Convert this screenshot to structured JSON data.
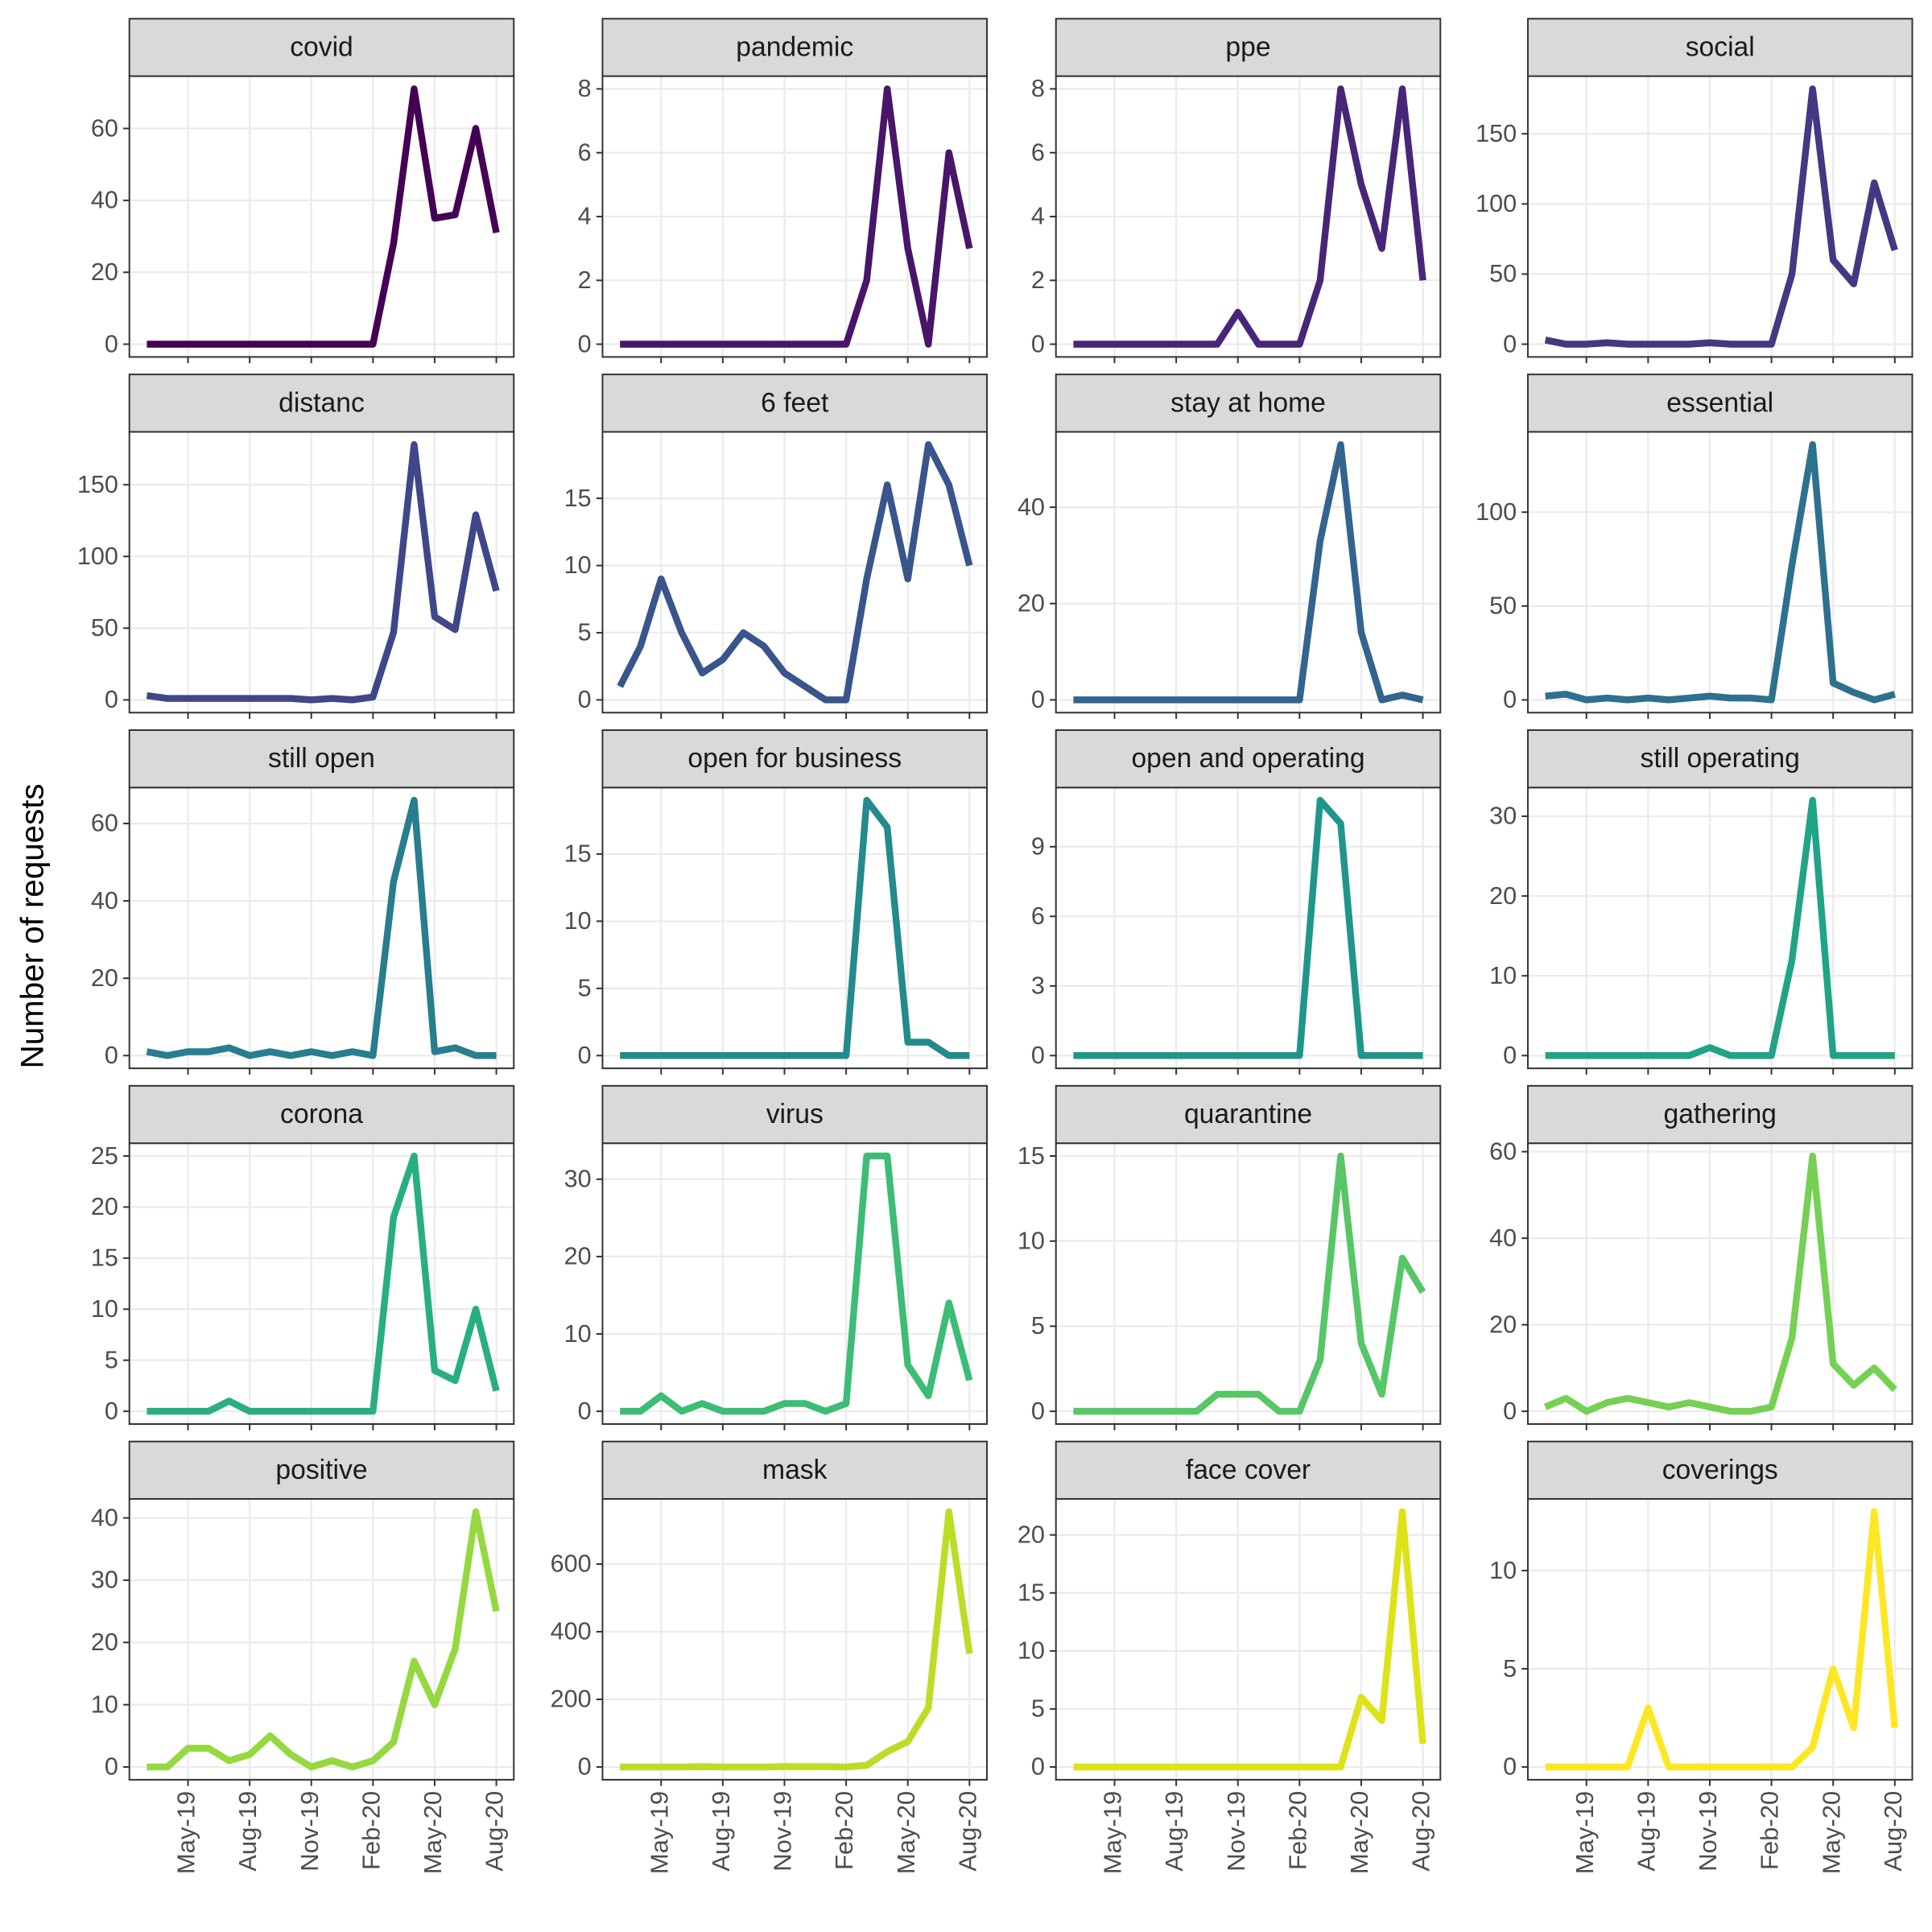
{
  "chart_data": {
    "type": "line",
    "ylabel": "Number of requests",
    "x": [
      "Mar-19",
      "Apr-19",
      "May-19",
      "Jun-19",
      "Jul-19",
      "Aug-19",
      "Sep-19",
      "Oct-19",
      "Nov-19",
      "Dec-19",
      "Jan-20",
      "Feb-20",
      "Mar-20",
      "Apr-20",
      "May-20",
      "Jun-20",
      "Jul-20",
      "Aug-20"
    ],
    "xticks": [
      "May-19",
      "Aug-19",
      "Nov-19",
      "Feb-20",
      "May-20",
      "Aug-20"
    ],
    "grid": true,
    "panels": [
      {
        "title": "covid",
        "color": "#440154",
        "values": [
          0,
          0,
          0,
          0,
          0,
          0,
          0,
          0,
          0,
          0,
          0,
          0,
          28,
          71,
          35,
          36,
          60,
          31
        ],
        "ylim": [
          -3.55,
          74.55
        ],
        "yticks": [
          0,
          20,
          40,
          60
        ]
      },
      {
        "title": "pandemic",
        "color": "#481568",
        "values": [
          0,
          0,
          0,
          0,
          0,
          0,
          0,
          0,
          0,
          0,
          0,
          0,
          2,
          8,
          3,
          0,
          6,
          3
        ],
        "ylim": [
          -0.4,
          8.4
        ],
        "yticks": [
          0,
          2,
          4,
          6,
          8
        ]
      },
      {
        "title": "ppe",
        "color": "#482677",
        "values": [
          0,
          0,
          0,
          0,
          0,
          0,
          0,
          0,
          1,
          0,
          0,
          0,
          2,
          8,
          5,
          3,
          8,
          2
        ],
        "ylim": [
          -0.4,
          8.4
        ],
        "yticks": [
          0,
          2,
          4,
          6,
          8
        ]
      },
      {
        "title": "social",
        "color": "#453781",
        "values": [
          3,
          0,
          0,
          1,
          0,
          0,
          0,
          0,
          1,
          0,
          0,
          0,
          50,
          182,
          60,
          43,
          115,
          67
        ],
        "ylim": [
          -9.1,
          191.1
        ],
        "yticks": [
          0,
          50,
          100,
          150
        ]
      },
      {
        "title": "distanc",
        "color": "#3F4788",
        "values": [
          3,
          1,
          1,
          1,
          1,
          1,
          1,
          1,
          0,
          1,
          0,
          2,
          47,
          178,
          58,
          49,
          129,
          76
        ],
        "ylim": [
          -8.9,
          186.9
        ],
        "yticks": [
          0,
          50,
          100,
          150
        ]
      },
      {
        "title": "6 feet",
        "color": "#39558C",
        "values": [
          1,
          4,
          9,
          5,
          2,
          3,
          5,
          4,
          2,
          1,
          0,
          0,
          9,
          16,
          9,
          19,
          16,
          10
        ],
        "ylim": [
          -0.95,
          19.95
        ],
        "yticks": [
          0,
          5,
          10,
          15
        ]
      },
      {
        "title": "stay at home",
        "color": "#32648E",
        "values": [
          0,
          0,
          0,
          0,
          0,
          0,
          0,
          0,
          0,
          0,
          0,
          0,
          33,
          53,
          14,
          0,
          1,
          0
        ],
        "ylim": [
          -2.65,
          55.65
        ],
        "yticks": [
          0,
          20,
          40
        ]
      },
      {
        "title": "essential",
        "color": "#2D718E",
        "values": [
          2,
          3,
          0,
          1,
          0,
          1,
          0,
          1,
          2,
          1,
          1,
          0,
          72,
          136,
          9,
          4,
          0,
          3
        ],
        "ylim": [
          -6.8,
          142.8
        ],
        "yticks": [
          0,
          50,
          100
        ]
      },
      {
        "title": "still open",
        "color": "#287D8E",
        "values": [
          1,
          0,
          1,
          1,
          2,
          0,
          1,
          0,
          1,
          0,
          1,
          0,
          45,
          66,
          1,
          2,
          0,
          0
        ],
        "ylim": [
          -3.3,
          69.3
        ],
        "yticks": [
          0,
          20,
          40,
          60
        ]
      },
      {
        "title": "open for business",
        "color": "#238A8D",
        "values": [
          0,
          0,
          0,
          0,
          0,
          0,
          0,
          0,
          0,
          0,
          0,
          0,
          19,
          17,
          1,
          1,
          0,
          0
        ],
        "ylim": [
          -0.95,
          19.95
        ],
        "yticks": [
          0,
          5,
          10,
          15
        ]
      },
      {
        "title": "open and operating",
        "color": "#1F968B",
        "values": [
          0,
          0,
          0,
          0,
          0,
          0,
          0,
          0,
          0,
          0,
          0,
          0,
          11,
          10,
          0,
          0,
          0,
          0
        ],
        "ylim": [
          -0.55,
          11.55
        ],
        "yticks": [
          0,
          3,
          6,
          9
        ]
      },
      {
        "title": "still operating",
        "color": "#20A386",
        "values": [
          0,
          0,
          0,
          0,
          0,
          0,
          0,
          0,
          1,
          0,
          0,
          0,
          12,
          32,
          0,
          0,
          0,
          0
        ],
        "ylim": [
          -1.6,
          33.6
        ],
        "yticks": [
          0,
          10,
          20,
          30
        ]
      },
      {
        "title": "corona",
        "color": "#29AF7F",
        "values": [
          0,
          0,
          0,
          0,
          1,
          0,
          0,
          0,
          0,
          0,
          0,
          0,
          19,
          25,
          4,
          3,
          10,
          2
        ],
        "ylim": [
          -1.25,
          26.25
        ],
        "yticks": [
          0,
          5,
          10,
          15,
          20,
          25
        ]
      },
      {
        "title": "virus",
        "color": "#3CBC75",
        "values": [
          0,
          0,
          2,
          0,
          1,
          0,
          0,
          0,
          1,
          1,
          0,
          1,
          33,
          33,
          6,
          2,
          14,
          4
        ],
        "ylim": [
          -1.65,
          34.65
        ],
        "yticks": [
          0,
          10,
          20,
          30
        ]
      },
      {
        "title": "quarantine",
        "color": "#56C667",
        "values": [
          0,
          0,
          0,
          0,
          0,
          0,
          0,
          1,
          1,
          1,
          0,
          0,
          3,
          15,
          4,
          1,
          9,
          7
        ],
        "ylim": [
          -0.75,
          15.75
        ],
        "yticks": [
          0,
          5,
          10,
          15
        ]
      },
      {
        "title": "gathering",
        "color": "#75D054",
        "values": [
          1,
          3,
          0,
          2,
          3,
          2,
          1,
          2,
          1,
          0,
          0,
          1,
          17,
          59,
          11,
          6,
          10,
          5
        ],
        "ylim": [
          -2.95,
          61.95
        ],
        "yticks": [
          0,
          20,
          40,
          60
        ]
      },
      {
        "title": "positive",
        "color": "#95D840",
        "values": [
          0,
          0,
          3,
          3,
          1,
          2,
          5,
          2,
          0,
          1,
          0,
          1,
          4,
          17,
          10,
          19,
          41,
          25
        ],
        "ylim": [
          -2.05,
          43.05
        ],
        "yticks": [
          0,
          10,
          20,
          30,
          40
        ]
      },
      {
        "title": "mask",
        "color": "#BADE28",
        "values": [
          0,
          0,
          0,
          0,
          1,
          0,
          0,
          0,
          1,
          1,
          1,
          0,
          5,
          45,
          75,
          175,
          755,
          335
        ],
        "ylim": [
          -37.75,
          792.75
        ],
        "yticks": [
          0,
          200,
          400,
          600
        ]
      },
      {
        "title": "face cover",
        "color": "#DDE318",
        "values": [
          0,
          0,
          0,
          0,
          0,
          0,
          0,
          0,
          0,
          0,
          0,
          0,
          0,
          0,
          6,
          4,
          22,
          2
        ],
        "ylim": [
          -1.1,
          23.1
        ],
        "yticks": [
          0,
          5,
          10,
          15,
          20
        ]
      },
      {
        "title": "coverings",
        "color": "#FDE725",
        "values": [
          0,
          0,
          0,
          0,
          0,
          3,
          0,
          0,
          0,
          0,
          0,
          0,
          0,
          1,
          5,
          2,
          13,
          2
        ],
        "ylim": [
          -0.65,
          13.65
        ],
        "yticks": [
          0,
          5,
          10
        ]
      }
    ]
  }
}
